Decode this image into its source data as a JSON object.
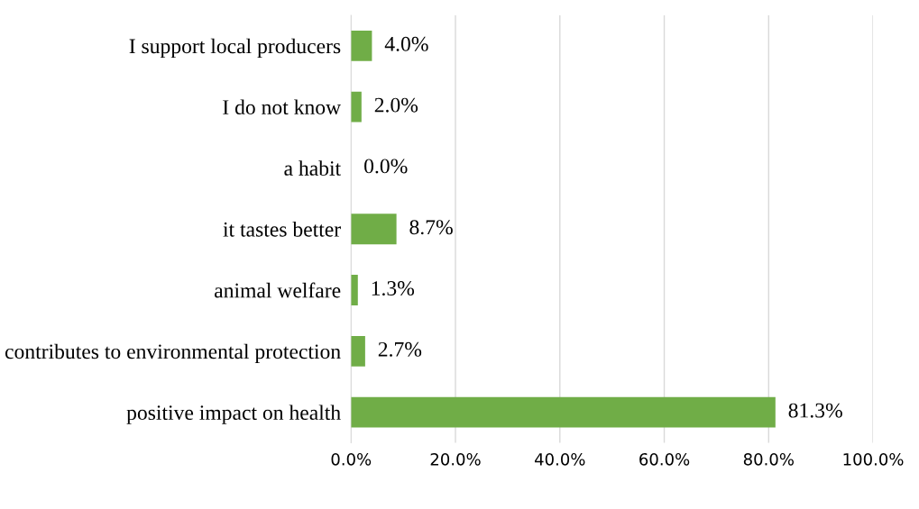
{
  "chart_data": {
    "type": "bar",
    "orientation": "horizontal",
    "categories": [
      "I support local producers",
      "I do not know",
      "a habit",
      "it tastes better",
      "animal welfare",
      "contributes to environmental protection",
      "positive impact on health"
    ],
    "values": [
      4.0,
      2.0,
      0.0,
      8.7,
      1.3,
      2.7,
      81.3
    ],
    "value_labels": [
      "4.0%",
      "2.0%",
      "0.0%",
      "8.7%",
      "1.3%",
      "2.7%",
      "81.3%"
    ],
    "color": "#70ad47",
    "xlim": [
      0,
      100
    ],
    "xticks": [
      {
        "value": 0,
        "label": "0.0%"
      },
      {
        "value": 20,
        "label": "20.0%"
      },
      {
        "value": 40,
        "label": "40.0%"
      },
      {
        "value": 60,
        "label": "60.0%"
      },
      {
        "value": 80,
        "label": "80.0%"
      },
      {
        "value": 100,
        "label": "100.0%"
      }
    ],
    "grid": "x"
  }
}
